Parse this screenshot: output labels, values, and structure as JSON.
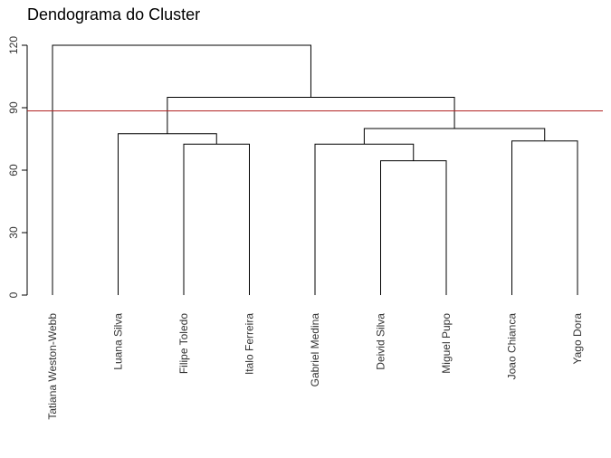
{
  "chart_data": {
    "type": "dendrogram",
    "title": "Dendograma do Cluster",
    "ylim": [
      0,
      120
    ],
    "y_ticks": [
      0,
      30,
      60,
      90,
      120
    ],
    "leaves": [
      "Tatiana Weston-Webb",
      "Luana Silva",
      "Filipe Toledo",
      "Italo Ferreira",
      "Gabriel Medina",
      "Deivid Silva",
      "Miguel Pupo",
      "Joao Chianca",
      "Yago Dora"
    ],
    "merges": [
      {
        "left": 6,
        "right": 7,
        "height": 64.5
      },
      {
        "left": 5,
        "right": "c1",
        "height": 72.5
      },
      {
        "left": 3,
        "right": 4,
        "height": 72.5
      },
      {
        "left": 8,
        "right": 9,
        "height": 74.0
      },
      {
        "left": 2,
        "right": "c3",
        "height": 77.5
      },
      {
        "left": "c2",
        "right": "c4",
        "height": 80.0
      },
      {
        "left": "c5",
        "right": "c6",
        "height": 95.0
      },
      {
        "left": 1,
        "right": "c7",
        "height": 120.0
      }
    ],
    "cut_line": {
      "y": 88.5,
      "color": "#b22222"
    },
    "grid": false
  }
}
